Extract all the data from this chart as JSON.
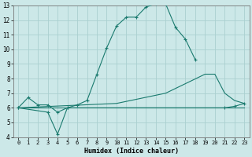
{
  "xlabel": "Humidex (Indice chaleur)",
  "bg_color": "#cce8e8",
  "grid_color": "#aad0d0",
  "line_color": "#1a7a6e",
  "xlim": [
    -0.5,
    23.5
  ],
  "ylim": [
    4,
    13
  ],
  "xticks": [
    0,
    1,
    2,
    3,
    4,
    5,
    6,
    7,
    8,
    9,
    10,
    11,
    12,
    13,
    14,
    15,
    16,
    17,
    18,
    19,
    20,
    21,
    22,
    23
  ],
  "yticks": [
    4,
    5,
    6,
    7,
    8,
    9,
    10,
    11,
    12,
    13
  ],
  "curve1_x": [
    0,
    1,
    2,
    3,
    4,
    5,
    6,
    7,
    8,
    9,
    10,
    11,
    12,
    13,
    14,
    15,
    16,
    17,
    18
  ],
  "curve1_y": [
    6.0,
    6.7,
    6.2,
    6.2,
    5.7,
    6.0,
    6.2,
    6.5,
    8.3,
    10.1,
    11.6,
    12.2,
    12.2,
    12.9,
    13.1,
    13.1,
    11.5,
    10.7,
    9.3
  ],
  "curve2_x": [
    0,
    3,
    4,
    5,
    21,
    22,
    23
  ],
  "curve2_y": [
    6.0,
    5.7,
    4.2,
    6.0,
    6.0,
    6.1,
    6.3
  ],
  "curve3_x": [
    0,
    23
  ],
  "curve3_y": [
    6.0,
    6.0
  ],
  "curve4_x": [
    0,
    10,
    15,
    19,
    20,
    21,
    22,
    23
  ],
  "curve4_y": [
    6.0,
    6.3,
    7.0,
    8.3,
    8.3,
    7.0,
    6.5,
    6.3
  ]
}
